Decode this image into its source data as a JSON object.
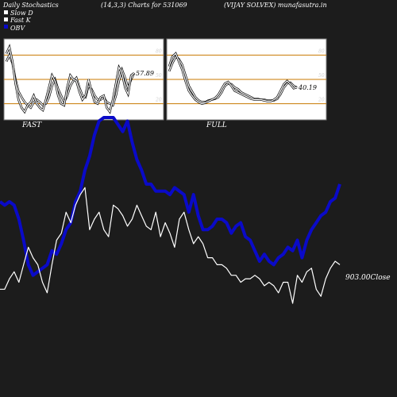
{
  "header": {
    "title": "Daily Stochastics",
    "params": "(14,3,3) Charts for 531069",
    "company": "(VIJAY SOLVEX) munafasutra.in"
  },
  "legend": [
    {
      "label": "Slow  D",
      "color": "#ffffff"
    },
    {
      "label": "Fast K",
      "color": "#ffffff"
    },
    {
      "label": "OBV",
      "color": "#0a0ac8"
    }
  ],
  "colors": {
    "background": "#1c1c1c",
    "panel": "#ffffff",
    "level_line": "#c87800",
    "obv": "#0a0ac8",
    "price": "#ffffff"
  },
  "chart_data": [
    {
      "type": "line",
      "name": "fast-stochastic",
      "label": "FAST",
      "current_value_label": "57.89",
      "ylim": [
        0,
        100
      ],
      "levels": [
        20,
        50,
        80
      ],
      "tick_labels": [
        "80",
        "50",
        "20"
      ],
      "series": [
        {
          "values": [
            72,
            80,
            70,
            50,
            35,
            28,
            22,
            18,
            15,
            22,
            25,
            22,
            18,
            20,
            28,
            42,
            50,
            38,
            30,
            22,
            30,
            42,
            48,
            52,
            40,
            30,
            28,
            42,
            38,
            30,
            25,
            25,
            28,
            22,
            20,
            18,
            30,
            48,
            62,
            52,
            40,
            50,
            58
          ]
        },
        {
          "values": [
            82,
            90,
            72,
            45,
            25,
            15,
            10,
            18,
            22,
            30,
            20,
            15,
            12,
            25,
            40,
            55,
            48,
            30,
            20,
            18,
            40,
            55,
            50,
            48,
            35,
            25,
            30,
            50,
            35,
            22,
            20,
            28,
            30,
            15,
            10,
            25,
            45,
            65,
            58,
            40,
            32,
            55,
            57.89
          ]
        }
      ]
    },
    {
      "type": "line",
      "name": "full-stochastic",
      "label": "FULL",
      "current_value_label": "40.19",
      "ylim": [
        0,
        100
      ],
      "levels": [
        20,
        50,
        80
      ],
      "tick_labels": [
        "80",
        "50",
        "20"
      ],
      "series": [
        {
          "values": [
            60,
            70,
            78,
            75,
            68,
            55,
            42,
            35,
            28,
            24,
            22,
            22,
            24,
            25,
            26,
            28,
            34,
            42,
            45,
            44,
            40,
            38,
            34,
            32,
            30,
            28,
            26,
            26,
            25,
            25,
            24,
            24,
            24,
            26,
            32,
            40,
            45,
            46,
            42,
            40
          ]
        },
        {
          "values": [
            66,
            78,
            82,
            72,
            62,
            48,
            36,
            30,
            25,
            22,
            20,
            21,
            23,
            25,
            27,
            31,
            38,
            45,
            47,
            42,
            36,
            34,
            32,
            30,
            28,
            26,
            25,
            25,
            25,
            24,
            23,
            23,
            25,
            28,
            36,
            44,
            48,
            44,
            39,
            40.19
          ]
        }
      ]
    },
    {
      "type": "line",
      "name": "price-obv",
      "close_label": "903.00Close",
      "series": [
        {
          "name": "OBV",
          "values": [
            33,
            32,
            33,
            32,
            28,
            22,
            15,
            12,
            13,
            14,
            15,
            19,
            18,
            21,
            25,
            27,
            33,
            36,
            42,
            46,
            52,
            56,
            57,
            57,
            57,
            55,
            53,
            56,
            50,
            45,
            42,
            38,
            38,
            36,
            36,
            36,
            35,
            37,
            36,
            35,
            30,
            35,
            29,
            25,
            25,
            26,
            28,
            28,
            27,
            24,
            26,
            27,
            23,
            22,
            19,
            16,
            18,
            16,
            15,
            17,
            18,
            20,
            19,
            22,
            17,
            22,
            25,
            27,
            29,
            30,
            33,
            34,
            38
          ]
        },
        {
          "values": [
            8,
            8,
            11,
            13,
            10,
            15,
            20,
            17,
            15,
            10,
            7,
            15,
            22,
            24,
            30,
            27,
            32,
            35,
            37,
            25,
            28,
            30,
            25,
            23,
            32,
            31,
            29,
            26,
            28,
            32,
            29,
            26,
            25,
            30,
            23,
            27,
            24,
            20,
            28,
            30,
            25,
            21,
            23,
            21,
            17,
            17,
            15,
            15,
            14,
            12,
            12,
            10,
            11,
            11,
            12,
            11,
            9,
            10,
            9,
            7,
            10,
            10,
            4,
            12,
            10,
            13,
            14,
            8,
            6,
            11,
            14,
            16,
            15
          ]
        }
      ]
    }
  ]
}
